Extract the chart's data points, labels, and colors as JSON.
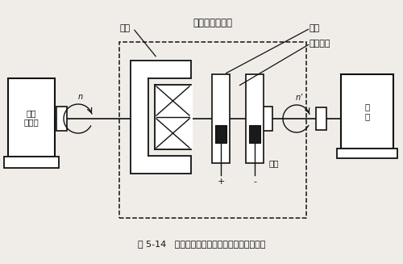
{
  "title": "图 5-14   电磁转差离合器的调速系统结构示意图",
  "bg_color": "#f0ede8",
  "line_color": "#111111",
  "labels": {
    "motor": "异步\n电动机",
    "coupler": "电磁转差离合器",
    "armature": "电枢",
    "mag_pole": "磁极",
    "exc_coil": "励磁线圈",
    "slip_ring": "滑环",
    "load": "负\n载",
    "n": "n",
    "n_prime": "n’",
    "plus": "+",
    "minus": "-"
  }
}
